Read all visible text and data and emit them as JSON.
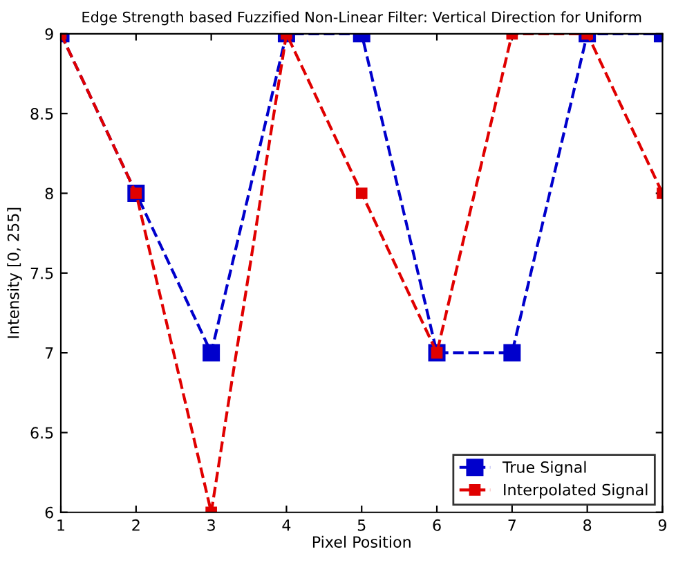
{
  "chart_data": {
    "type": "line",
    "title": "Edge Strength based Fuzzified Non-Linear Filter: Vertical Direction for Uniform",
    "xlabel": "Pixel Position",
    "ylabel": "Intensity [0, 255]",
    "x": [
      1,
      2,
      3,
      4,
      5,
      6,
      7,
      8,
      9
    ],
    "series": [
      {
        "name": "True Signal",
        "color": "#0000cc",
        "values": [
          9,
          8,
          7,
          9,
          9,
          7,
          7,
          9,
          9
        ]
      },
      {
        "name": "Interpolated Signal",
        "color": "#e00000",
        "values": [
          9,
          8,
          6,
          9,
          8,
          7,
          9,
          9,
          8
        ]
      }
    ],
    "xlim": [
      1,
      9
    ],
    "xticks": [
      1,
      2,
      3,
      4,
      5,
      6,
      7,
      8,
      9
    ],
    "ylim": [
      6,
      9
    ],
    "yticks": [
      6,
      6.5,
      7,
      7.5,
      8,
      8.5,
      9
    ],
    "grid": false,
    "legend": "bottom right",
    "marker": "square",
    "line_style": "dashed"
  }
}
